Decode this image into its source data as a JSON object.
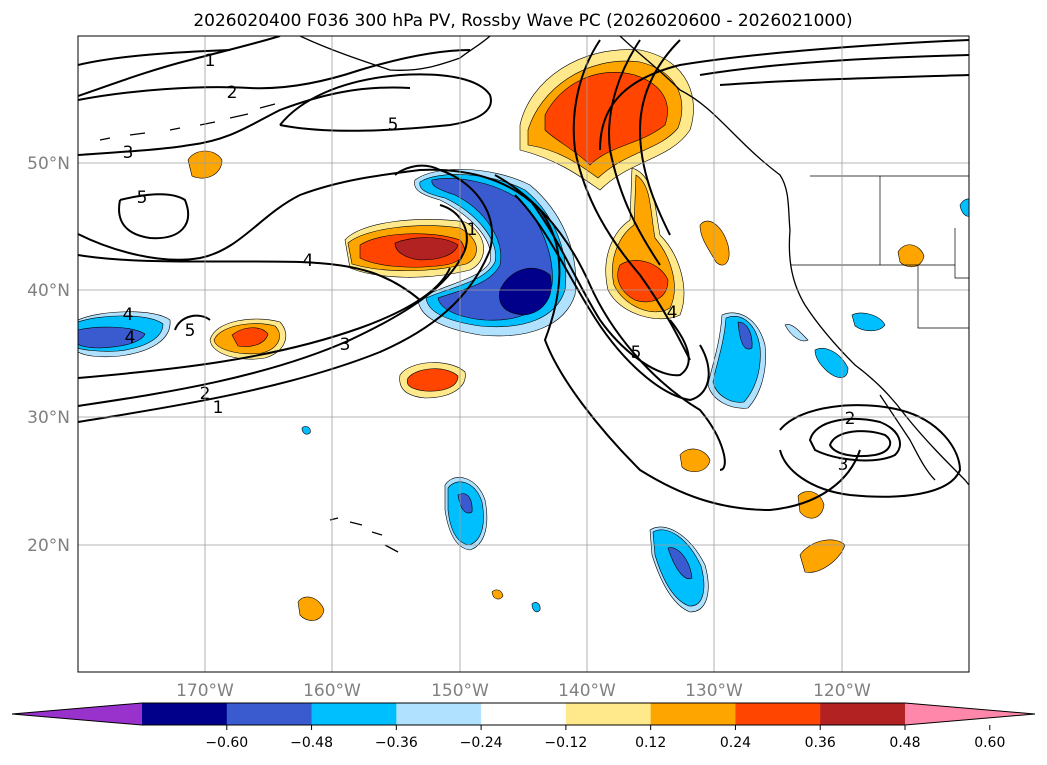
{
  "title": "2026020400 F036 300 hPa PV, Rossby Wave PC (2026020600 - 2026021000)",
  "map": {
    "lat_labels": [
      "50°N",
      "40°N",
      "30°N",
      "20°N"
    ],
    "lon_labels": [
      "170°W",
      "160°W",
      "150°W",
      "140°W",
      "130°W",
      "120°W"
    ]
  },
  "contour_labels": [
    "1",
    "2",
    "3",
    "4",
    "5",
    "1",
    "2",
    "3",
    "4",
    "5",
    "5",
    "4",
    "3",
    "2",
    "1",
    "4",
    "5",
    "1",
    "2",
    "3"
  ],
  "colorbar": {
    "ticks": [
      "−0.60",
      "−0.48",
      "−0.36",
      "−0.24",
      "−0.12",
      "0.12",
      "0.24",
      "0.36",
      "0.48",
      "0.60"
    ],
    "colors": [
      "#9932cc",
      "#00008b",
      "#3a5bd0",
      "#00bfff",
      "#b0e2ff",
      "#ffffff",
      "#ffe98a",
      "#ffa500",
      "#ff4500",
      "#b22222",
      "#ff88aa"
    ]
  },
  "colors": {
    "neg_strong": "#00008b",
    "neg_mid": "#3a5bd0",
    "neg_light": "#00bfff",
    "neg_pale": "#b0e2ff",
    "pos_pale": "#ffe98a",
    "pos_mid": "#ffa500",
    "pos_strong": "#ff4500",
    "pos_dark": "#b22222"
  }
}
